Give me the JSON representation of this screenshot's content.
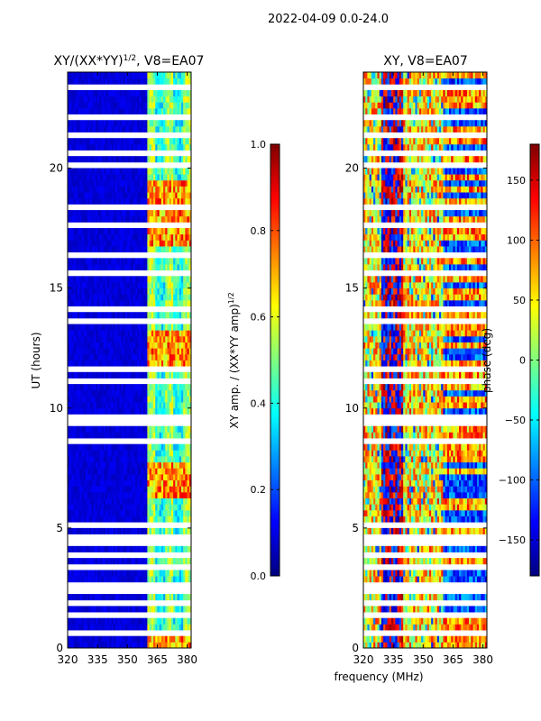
{
  "suptitle": "2022-04-09 0.0-24.0",
  "chart_data": [
    {
      "type": "heatmap",
      "title": "XY/(XX*YY)^1/2, V8=EA07",
      "title_main": "XY/(XX*YY)",
      "title_sup": "1/2",
      "title_tail": ", V8=EA07",
      "xlabel": "",
      "ylabel": "UT (hours)",
      "xlim": [
        320,
        382
      ],
      "ylim": [
        0,
        24
      ],
      "xticks": [
        "320",
        "335",
        "350",
        "365",
        "380"
      ],
      "yticks": [
        "0",
        "5",
        "10",
        "15",
        "20"
      ],
      "colorbar": {
        "label": "XY amp. / (XX*YY amp)^1/2",
        "label_main": "XY amp. / (XX*YY amp)",
        "label_sup": "1/2",
        "range": [
          0.0,
          1.0
        ],
        "ticks": [
          "0.0",
          "0.2",
          "0.4",
          "0.6",
          "0.8",
          "1.0"
        ]
      },
      "bright_band_mhz": [
        360,
        382
      ],
      "hot_band_hours": [
        [
          6.2,
          7.8
        ],
        [
          11.8,
          13.2
        ],
        [
          16.8,
          19.4
        ]
      ]
    },
    {
      "type": "heatmap",
      "title": "XY, V8=EA07",
      "xlabel": "frequency (MHz)",
      "ylabel": "",
      "xlim": [
        320,
        382
      ],
      "ylim": [
        0,
        24
      ],
      "xticks": [
        "320",
        "335",
        "350",
        "365",
        "380"
      ],
      "yticks": [
        "0",
        "5",
        "10",
        "15",
        "20"
      ],
      "colorbar": {
        "label": "phase (deg)",
        "range": [
          -180,
          180
        ],
        "ticks": [
          "-150",
          "-100",
          "-50",
          "0",
          "50",
          "100",
          "150"
        ]
      },
      "blue_stripe_mhz": [
        329,
        340
      ]
    }
  ],
  "colors": {
    "cmap": [
      "#00007f",
      "#0000ff",
      "#007fff",
      "#00ffff",
      "#7fff7f",
      "#ffff00",
      "#ff7f00",
      "#ff0000",
      "#7f0000"
    ]
  },
  "data_gaps_hours": [
    0.6,
    1.0,
    1.3,
    1.8,
    2.3,
    2.6,
    3.0,
    3.3,
    3.8,
    4.3,
    4.6,
    5.1,
    5.5,
    6.0,
    8.6,
    9.3,
    9.6,
    11.2,
    11.6,
    13.6,
    14.2,
    15.6,
    16.3,
    17.6,
    18.3,
    20.2,
    20.6,
    21.4,
    22.2,
    23.3
  ]
}
